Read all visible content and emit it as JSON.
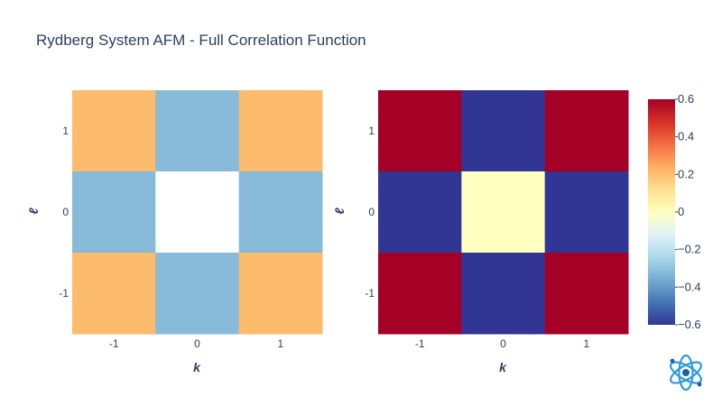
{
  "chart_data": [
    {
      "type": "heatmap",
      "title": "Rydberg System AFM - Full Correlation Function",
      "xlabel": "k",
      "ylabel": "ℓ",
      "x": [
        "-1",
        "0",
        "1"
      ],
      "y": [
        "1",
        "0",
        "-1"
      ],
      "style": "binary sign map",
      "colors": {
        "positive": "#fdbb6d",
        "negative": "#88bbda",
        "zero": "#ffffff"
      },
      "z": [
        [
          1,
          -1,
          1
        ],
        [
          -1,
          0,
          -1
        ],
        [
          1,
          -1,
          1
        ]
      ]
    },
    {
      "type": "heatmap",
      "xlabel": "k",
      "ylabel": "ℓ",
      "x": [
        "-1",
        "0",
        "1"
      ],
      "y": [
        "1",
        "0",
        "-1"
      ],
      "colorscale": "RdYlBu_r",
      "zlim": [
        -0.6,
        0.6
      ],
      "colorbar_ticks": [
        "0.6",
        "0.4",
        "0.2",
        "0",
        "−0.2",
        "−0.4",
        "−0.6"
      ],
      "colorbar_tick_values": [
        0.6,
        0.4,
        0.2,
        0,
        -0.2,
        -0.4,
        -0.6
      ],
      "z": [
        [
          0.6,
          -0.6,
          0.6
        ],
        [
          -0.6,
          0.0,
          -0.6
        ],
        [
          0.6,
          -0.6,
          0.6
        ]
      ]
    }
  ],
  "logo": {
    "name": "atom-logo",
    "accent": "#2b9be0"
  }
}
